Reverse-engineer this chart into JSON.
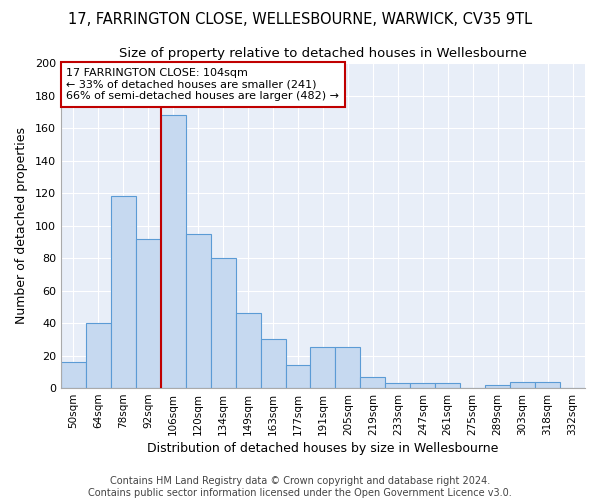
{
  "title1": "17, FARRINGTON CLOSE, WELLESBOURNE, WARWICK, CV35 9TL",
  "title2": "Size of property relative to detached houses in Wellesbourne",
  "xlabel": "Distribution of detached houses by size in Wellesbourne",
  "ylabel": "Number of detached properties",
  "footer1": "Contains HM Land Registry data © Crown copyright and database right 2024.",
  "footer2": "Contains public sector information licensed under the Open Government Licence v3.0.",
  "bar_labels": [
    "50sqm",
    "64sqm",
    "78sqm",
    "92sqm",
    "106sqm",
    "120sqm",
    "134sqm",
    "149sqm",
    "163sqm",
    "177sqm",
    "191sqm",
    "205sqm",
    "219sqm",
    "233sqm",
    "247sqm",
    "261sqm",
    "275sqm",
    "289sqm",
    "303sqm",
    "318sqm",
    "332sqm"
  ],
  "bar_values": [
    16,
    40,
    118,
    92,
    168,
    95,
    80,
    46,
    30,
    14,
    25,
    25,
    7,
    3,
    3,
    3,
    0,
    2,
    4,
    4,
    0
  ],
  "bar_color": "#c6d9f0",
  "bar_edge_color": "#5b9bd5",
  "vline_x": 3.5,
  "vline_color": "#c00000",
  "annotation_text": "17 FARRINGTON CLOSE: 104sqm\n← 33% of detached houses are smaller (241)\n66% of semi-detached houses are larger (482) →",
  "annotation_box_color": "#ffffff",
  "annotation_box_edge": "#c00000",
  "ylim": [
    0,
    200
  ],
  "yticks": [
    0,
    20,
    40,
    60,
    80,
    100,
    120,
    140,
    160,
    180,
    200
  ],
  "bg_color": "#e8eef8",
  "grid_color": "#ffffff",
  "fig_bg_color": "#ffffff",
  "title1_fontsize": 10.5,
  "title2_fontsize": 9.5,
  "xlabel_fontsize": 9,
  "ylabel_fontsize": 9,
  "footer_fontsize": 7
}
